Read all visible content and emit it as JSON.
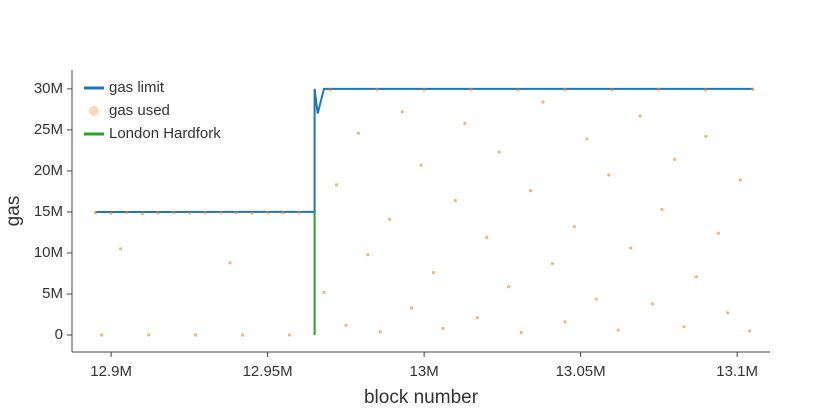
{
  "chart_data": {
    "type": "scatter",
    "xlabel": "block number",
    "ylabel": "gas",
    "xlim": [
      12887500,
      13110500
    ],
    "ylim": [
      -2070000,
      32300000
    ],
    "xticks": [
      {
        "value": 12900000,
        "label": "12.9M"
      },
      {
        "value": 12950000,
        "label": "12.95M"
      },
      {
        "value": 13000000,
        "label": "13M"
      },
      {
        "value": 13050000,
        "label": "13.05M"
      },
      {
        "value": 13100000,
        "label": "13.1M"
      }
    ],
    "yticks": [
      0,
      {
        "value": 5000000,
        "label": "5M"
      },
      {
        "value": 10000000,
        "label": "10M"
      },
      {
        "value": 15000000,
        "label": "15M"
      },
      {
        "value": 20000000,
        "label": "20M"
      },
      {
        "value": 25000000,
        "label": "25M"
      },
      {
        "value": 30000000,
        "label": "30M"
      }
    ],
    "legend": "upper left",
    "series": [
      {
        "name": "gas limit",
        "type": "line",
        "color": "#1f77b4",
        "x": [
          12895000,
          12965000,
          12965000,
          12966000,
          12967000,
          12968000,
          13105000
        ],
        "values": [
          14990000,
          15000000,
          30000000,
          27000000,
          28500000,
          30000000,
          30000000
        ]
      },
      {
        "name": "gas used",
        "type": "scatter",
        "color": "#ff7f0e",
        "x": [
          12895000,
          12900000,
          12905000,
          12910000,
          12915000,
          12920000,
          12925000,
          12930000,
          12935000,
          12940000,
          12945000,
          12950000,
          12955000,
          12960000,
          12897000,
          12912000,
          12927000,
          12942000,
          12957000,
          12903000,
          12938000,
          12970000,
          12985000,
          13000000,
          13015000,
          13030000,
          13045000,
          13060000,
          13075000,
          13090000,
          13105000,
          12968000,
          12972000,
          12975000,
          12979000,
          12982000,
          12986000,
          12989000,
          12993000,
          12996000,
          12999000,
          13003000,
          13006000,
          13010000,
          13013000,
          13017000,
          13020000,
          13024000,
          13027000,
          13031000,
          13034000,
          13038000,
          13041000,
          13045000,
          13048000,
          13052000,
          13055000,
          13059000,
          13062000,
          13066000,
          13069000,
          13073000,
          13076000,
          13080000,
          13083000,
          13087000,
          13090000,
          13094000,
          13097000,
          13101000,
          13104000
        ],
        "values": [
          14900000,
          14850000,
          14950000,
          14800000,
          14900000,
          14950000,
          14850000,
          14900000,
          14950000,
          14900000,
          14850000,
          14950000,
          14900000,
          14950000,
          0,
          0,
          0,
          0,
          0,
          10500000,
          8800000,
          29900000,
          29950000,
          29900000,
          29950000,
          29900000,
          29950000,
          29900000,
          29950000,
          29900000,
          29950000,
          5200000,
          18300000,
          1200000,
          24600000,
          9800000,
          400000,
          14100000,
          27200000,
          3300000,
          20700000,
          7600000,
          800000,
          16400000,
          25800000,
          2100000,
          11900000,
          22300000,
          5900000,
          300000,
          17600000,
          28400000,
          8700000,
          1600000,
          13200000,
          23900000,
          4400000,
          19500000,
          600000,
          10600000,
          26700000,
          3800000,
          15300000,
          21400000,
          1000000,
          7100000,
          24200000,
          12400000,
          2700000,
          18900000,
          500000
        ]
      },
      {
        "name": "London Hardfork",
        "type": "line",
        "color": "#2ca02c",
        "x": [
          12965000,
          12965000
        ],
        "values": [
          0,
          15000000
        ]
      }
    ]
  }
}
